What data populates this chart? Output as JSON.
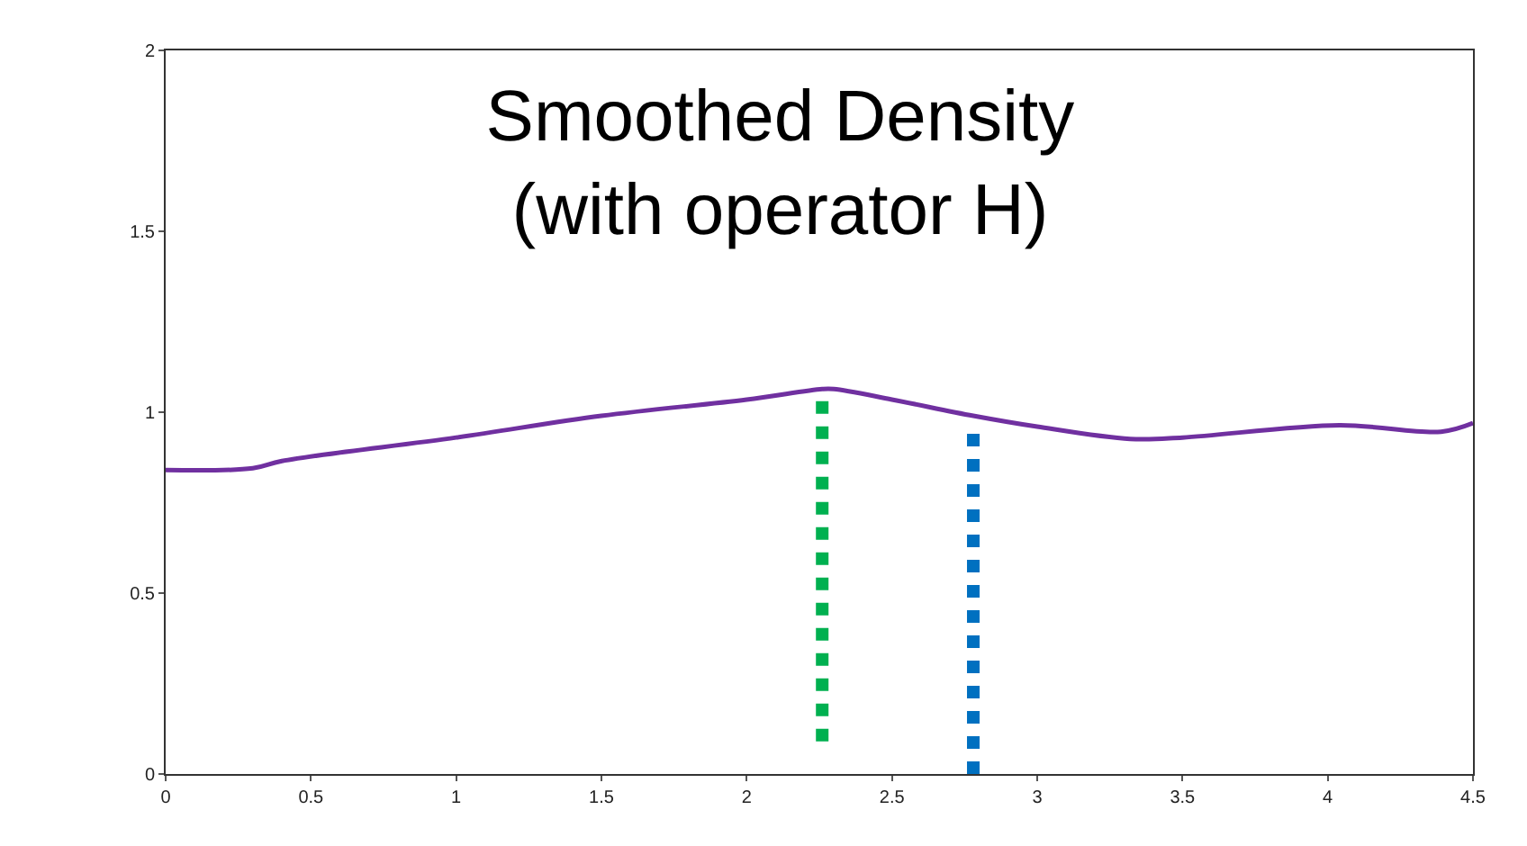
{
  "chart_data": {
    "type": "line",
    "title": "Smoothed Density\n(with operator H)",
    "series": [
      {
        "x": [
          0,
          0.3,
          0.4,
          1.0,
          1.5,
          2.0,
          2.26,
          2.3,
          2.5,
          2.78,
          3.0,
          3.32,
          3.5,
          4.04,
          4.39,
          4.5
        ],
        "values": [
          0.84,
          0.845,
          0.865,
          0.93,
          0.99,
          1.035,
          1.064,
          1.064,
          1.035,
          0.99,
          0.96,
          0.926,
          0.93,
          0.964,
          0.946,
          0.97
        ],
        "color": "#7030a0",
        "line_style": "solid"
      },
      {
        "x": [
          2.26,
          2.26
        ],
        "values": [
          0.09,
          1.05
        ],
        "color": "#00b050",
        "line_style": "dotted"
      },
      {
        "x": [
          2.78,
          2.78
        ],
        "values": [
          0,
          0.96
        ],
        "color": "#0070c0",
        "line_style": "dotted"
      }
    ],
    "xlim": [
      0,
      4.5
    ],
    "xticks": [
      0,
      0.5,
      1,
      1.5,
      2,
      2.5,
      3,
      3.5,
      4,
      4.5
    ],
    "ylim": [
      0,
      2
    ],
    "yticks": [
      0,
      0.5,
      1,
      1.5,
      2
    ],
    "grid": false,
    "marker": "none"
  }
}
